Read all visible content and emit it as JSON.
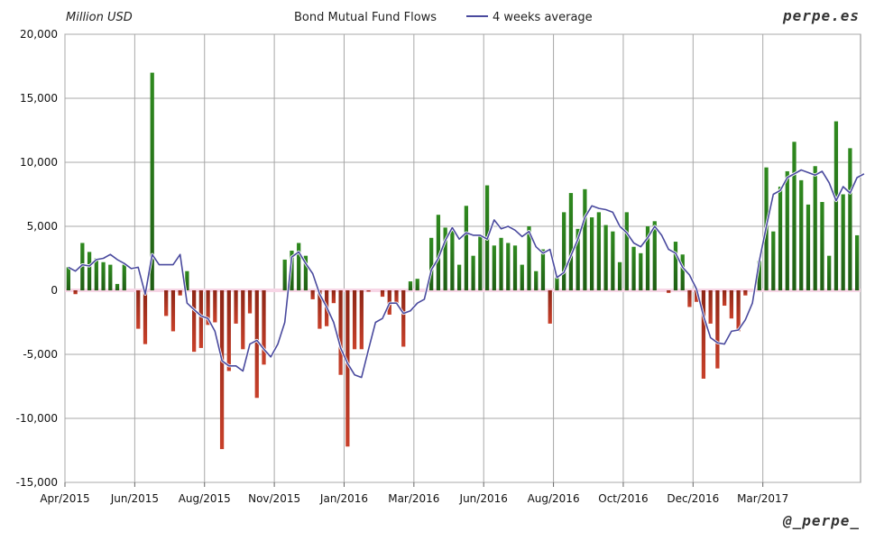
{
  "chart_data": {
    "type": "bar",
    "title": "Bond Mutual Fund Flows",
    "ylabel": "Million USD",
    "watermark_top": "perpe.es",
    "watermark_bottom": "@_perpe_",
    "ylim": [
      -15000,
      20000
    ],
    "yticks": [
      20000,
      15000,
      10000,
      5000,
      0,
      -5000,
      -10000,
      -15000
    ],
    "ytick_labels": [
      "20,000",
      "15,000",
      "10,000",
      "5,000",
      "0",
      "-5,000",
      "-10,000",
      "-15,000"
    ],
    "xticks": [
      {
        "label": "Apr/2015",
        "index": 0
      },
      {
        "label": "Jun/2015",
        "index": 10
      },
      {
        "label": "Aug/2015",
        "index": 20
      },
      {
        "label": "Nov/2015",
        "index": 30
      },
      {
        "label": "Jan/2016",
        "index": 40
      },
      {
        "label": "Mar/2016",
        "index": 50
      },
      {
        "label": "Jun/2016",
        "index": 60
      },
      {
        "label": "Aug/2016",
        "index": 70
      },
      {
        "label": "Oct/2016",
        "index": 80
      },
      {
        "label": "Dec/2016",
        "index": 90
      },
      {
        "label": "Mar/2017",
        "index": 100
      }
    ],
    "grid": true,
    "legend": "top",
    "positive_color": "#2e7d1e",
    "negative_color": "#b5331e",
    "line_color": "#4a4a9e",
    "series": [
      {
        "type": "bar",
        "values": [
          1800,
          -300,
          3700,
          3000,
          2500,
          2200,
          2000,
          500,
          2000,
          0,
          -3000,
          -4200,
          17000,
          0,
          -2000,
          -3200,
          -400,
          1500,
          -4800,
          -4500,
          -2700,
          -2500,
          -12400,
          -6300,
          -2600,
          -4600,
          -1800,
          -8400,
          -5800,
          0,
          0,
          2400,
          3100,
          3700,
          2700,
          -700,
          -3000,
          -2800,
          -1000,
          -6600,
          -12200,
          -4600,
          -4600,
          -100,
          0,
          -500,
          -1900,
          -1000,
          -4400,
          700,
          900,
          0,
          4100,
          5900,
          4900,
          4700,
          2000,
          6600,
          2700,
          4300,
          8200,
          3500,
          4100,
          3700,
          3500,
          2000,
          5000,
          1500,
          3200,
          -2600,
          1000,
          6100,
          7600,
          4800,
          7900,
          5700,
          6100,
          5100,
          4600,
          2200,
          6100,
          3400,
          2900,
          5000,
          5400,
          0,
          -200,
          3800,
          2800,
          -1300,
          -900,
          -6900,
          -2600,
          -6100,
          -1200,
          -2200,
          -3200,
          -400,
          0,
          2300,
          9600,
          4600,
          8100,
          9300,
          11600,
          8600,
          6700,
          9700,
          6900,
          2700,
          13200,
          7500,
          11100,
          4300
        ]
      },
      {
        "type": "line",
        "name": "4 weeks average",
        "values": [
          1800,
          1500,
          2000,
          1900,
          2400,
          2500,
          2800,
          2400,
          2100,
          1700,
          1800,
          -300,
          2800,
          2000,
          2000,
          2000,
          2800,
          -1000,
          -1500,
          -2000,
          -2200,
          -3200,
          -5500,
          -5900,
          -5900,
          -6300,
          -4200,
          -3900,
          -4600,
          -5200,
          -4200,
          -2500,
          2600,
          3000,
          2100,
          1300,
          -300,
          -1300,
          -2500,
          -4500,
          -5700,
          -6600,
          -6800,
          -4600,
          -2500,
          -2200,
          -1000,
          -1000,
          -1800,
          -1600,
          -1000,
          -700,
          1600,
          2500,
          3900,
          4900,
          4000,
          4500,
          4300,
          4300,
          4000,
          5500,
          4800,
          5000,
          4700,
          4200,
          4600,
          3400,
          2900,
          3200,
          1000,
          1400,
          2700,
          4000,
          5700,
          6600,
          6400,
          6300,
          6100,
          5000,
          4500,
          3700,
          3400,
          4100,
          5000,
          4300,
          3200,
          2900,
          1800,
          1200,
          100,
          -2000,
          -3700,
          -4100,
          -4200,
          -3200,
          -3100,
          -2300,
          -1000,
          2300,
          5000,
          7500,
          7800,
          8800,
          9100,
          9400,
          9200,
          9000,
          9300,
          8400,
          7000,
          8100,
          7600,
          8800,
          9100
        ]
      }
    ]
  }
}
